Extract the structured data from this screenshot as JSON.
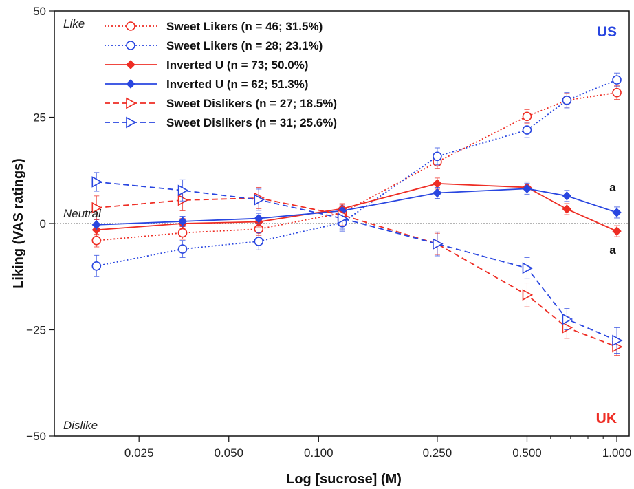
{
  "chart_data": {
    "type": "line",
    "title": "",
    "xlabel": "Log [sucrose] (M)",
    "ylabel": "Liking (VAS ratings)",
    "x_scale": "log",
    "xlim": [
      0.013,
      1.1
    ],
    "ylim": [
      -50,
      50
    ],
    "x_ticks": [
      {
        "value": 0.025,
        "label": "0.025"
      },
      {
        "value": 0.05,
        "label": "0.050"
      },
      {
        "value": 0.1,
        "label": "0.100"
      },
      {
        "value": 0.25,
        "label": "0.250"
      },
      {
        "value": 0.5,
        "label": "0.500"
      },
      {
        "value": 1.0,
        "label": "1.000"
      }
    ],
    "x_minor_ticks": [
      0.6,
      0.7,
      0.8,
      0.9
    ],
    "y_ticks": [
      {
        "value": 50,
        "label": "50"
      },
      {
        "value": 25,
        "label": "25"
      },
      {
        "value": 0,
        "label": "0"
      },
      {
        "value": -25,
        "label": "−25"
      },
      {
        "value": -50,
        "label": "−50"
      }
    ],
    "x": [
      0.018,
      0.035,
      0.063,
      0.12,
      0.25,
      0.5,
      0.68,
      1.0
    ],
    "series": [
      {
        "name": "Sweet Likers (n = 46; 31.5%)",
        "color": "#ee2d24",
        "dash": "2,3",
        "marker": "circle",
        "values": [
          -4,
          -2.2,
          -1.3,
          2.5,
          14.5,
          25.2,
          29,
          30.8
        ],
        "errors": [
          1.5,
          1.5,
          1.5,
          1.5,
          1.5,
          1.6,
          1.6,
          1.6
        ]
      },
      {
        "name": "Sweet Likers (n = 28; 23.1%)",
        "color": "#2946e0",
        "dash": "2,3",
        "marker": "circle",
        "values": [
          -10,
          -6,
          -4.2,
          0.2,
          15.8,
          22,
          29,
          33.8
        ],
        "errors": [
          2.5,
          2.0,
          2.0,
          2.0,
          2.0,
          1.8,
          1.8,
          1.6
        ]
      },
      {
        "name": "Inverted U (n = 73; 50.0%)",
        "color": "#ee2d24",
        "dash": "",
        "marker": "diamond",
        "values": [
          -1.5,
          0,
          0.4,
          3.5,
          9.4,
          8.5,
          3.4,
          -1.8
        ],
        "errors": [
          1.2,
          1.2,
          1.2,
          1.2,
          1.3,
          1.3,
          1.3,
          1.3
        ]
      },
      {
        "name": "Inverted U (n = 62; 51.3%)",
        "color": "#2946e0",
        "dash": "",
        "marker": "diamond",
        "values": [
          -0.3,
          0.5,
          1.2,
          3,
          7.2,
          8.2,
          6.5,
          2.6
        ],
        "errors": [
          1.2,
          1.2,
          1.2,
          1.2,
          1.3,
          1.3,
          1.3,
          1.3
        ]
      },
      {
        "name": "Sweet Dislikers (n = 27; 18.5%)",
        "color": "#ee2d24",
        "dash": "8,5",
        "marker": "triangle-right",
        "values": [
          3.7,
          5.5,
          6,
          2,
          -4.8,
          -16.8,
          -24.5,
          -29
        ],
        "errors": [
          2.8,
          2.5,
          2.5,
          2.5,
          2.5,
          2.8,
          2.5,
          2.0
        ]
      },
      {
        "name": "Sweet Dislikers (n = 31; 25.6%)",
        "color": "#2946e0",
        "dash": "8,5",
        "marker": "triangle-right",
        "values": [
          9.8,
          7.8,
          5.6,
          1.2,
          -4.8,
          -10.5,
          -22.5,
          -27.5
        ],
        "errors": [
          2.2,
          2.5,
          2.5,
          2.5,
          2.8,
          2.5,
          2.5,
          3.0
        ]
      }
    ],
    "reference_line": {
      "y": 0
    },
    "legend_position": "top-left",
    "annotations": {
      "like": "Like",
      "neutral": "Neutral",
      "dislike": "Dislike",
      "us": "US",
      "uk": "UK",
      "sig_top": "a",
      "sig_bottom": "a"
    },
    "colors": {
      "uk": "#ee2d24",
      "us": "#2946e0",
      "axis": "#111111",
      "reference": "#888888"
    }
  }
}
